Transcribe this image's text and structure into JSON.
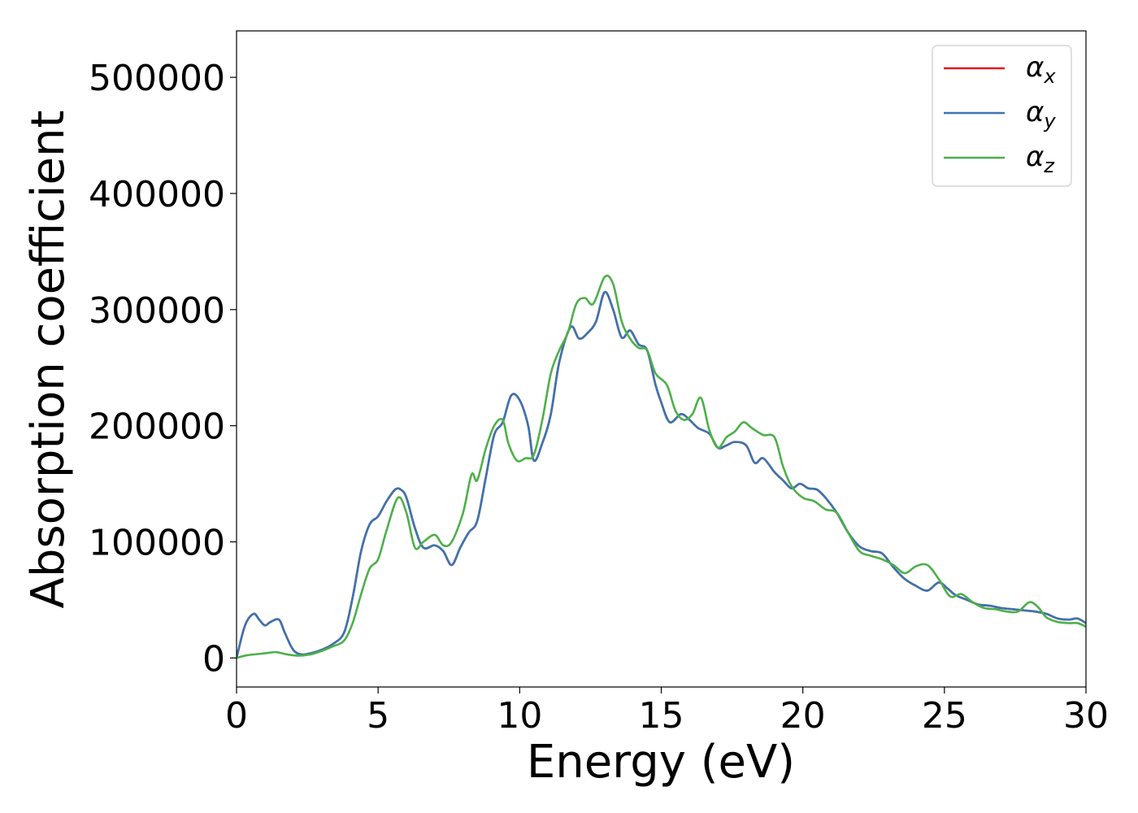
{
  "chart_data": {
    "type": "line",
    "xlabel": "Energy (eV)",
    "ylabel": "Absorption coefficient",
    "xlim": [
      0,
      30
    ],
    "ylim": [
      -25000,
      540000
    ],
    "x_ticks": [
      0,
      5,
      10,
      15,
      20,
      25,
      30
    ],
    "y_ticks": [
      0,
      100000,
      200000,
      300000,
      400000,
      500000
    ],
    "x_tick_labels": [
      "0",
      "5",
      "10",
      "15",
      "20",
      "25",
      "30"
    ],
    "y_tick_labels": [
      "0",
      "100000",
      "200000",
      "300000",
      "400000",
      "500000"
    ],
    "grid": false,
    "legend_position": "top-right",
    "series": [
      {
        "name": "α",
        "subscript": "x",
        "color": "#e41a1c",
        "x": [
          0,
          0.3,
          0.6,
          0.8,
          1.0,
          1.2,
          1.5,
          1.7,
          2.0,
          2.3,
          2.6,
          3.0,
          3.4,
          3.8,
          4.1,
          4.4,
          4.7,
          5.0,
          5.3,
          5.6,
          5.8,
          6.0,
          6.3,
          6.6,
          7.0,
          7.3,
          7.6,
          7.9,
          8.2,
          8.5,
          8.8,
          9.1,
          9.4,
          9.7,
          10.0,
          10.3,
          10.5,
          10.8,
          11.1,
          11.4,
          11.8,
          12.1,
          12.4,
          12.7,
          13.0,
          13.3,
          13.6,
          13.9,
          14.2,
          14.5,
          14.8,
          15.0,
          15.3,
          15.7,
          16.0,
          16.3,
          16.7,
          17.0,
          17.3,
          17.6,
          18.0,
          18.3,
          18.6,
          19.0,
          19.3,
          19.6,
          19.9,
          20.2,
          20.5,
          20.8,
          21.2,
          21.6,
          22.0,
          22.4,
          22.8,
          23.2,
          23.6,
          24.0,
          24.4,
          24.8,
          25.1,
          25.4,
          25.8,
          26.2,
          26.6,
          27.0,
          27.4,
          27.8,
          28.2,
          28.6,
          29.0,
          29.4,
          29.7,
          30.0
        ],
        "values": [
          0,
          28000,
          38000,
          33000,
          28000,
          31000,
          33000,
          22000,
          7000,
          3000,
          4000,
          7000,
          12000,
          22000,
          52000,
          92000,
          115000,
          122000,
          135000,
          145000,
          145000,
          138000,
          112000,
          95000,
          97000,
          92000,
          80000,
          95000,
          108000,
          118000,
          155000,
          192000,
          203000,
          226000,
          222000,
          200000,
          170000,
          185000,
          210000,
          255000,
          285000,
          275000,
          280000,
          290000,
          315000,
          300000,
          276000,
          282000,
          270000,
          265000,
          235000,
          220000,
          203000,
          210000,
          205000,
          198000,
          193000,
          181000,
          183000,
          186000,
          183000,
          168000,
          172000,
          160000,
          153000,
          146000,
          150000,
          146000,
          145000,
          138000,
          125000,
          108000,
          96000,
          92000,
          90000,
          78000,
          68000,
          62000,
          58000,
          65000,
          60000,
          54000,
          50000,
          46000,
          45000,
          43000,
          42000,
          41000,
          40000,
          38000,
          34000,
          33000,
          34000,
          30000
        ]
      },
      {
        "name": "α",
        "subscript": "y",
        "color": "#3a74b0",
        "x": [
          0,
          0.3,
          0.6,
          0.8,
          1.0,
          1.2,
          1.5,
          1.7,
          2.0,
          2.3,
          2.6,
          3.0,
          3.4,
          3.8,
          4.1,
          4.4,
          4.7,
          5.0,
          5.3,
          5.6,
          5.8,
          6.0,
          6.3,
          6.6,
          7.0,
          7.3,
          7.6,
          7.9,
          8.2,
          8.5,
          8.8,
          9.1,
          9.4,
          9.7,
          10.0,
          10.3,
          10.5,
          10.8,
          11.1,
          11.4,
          11.8,
          12.1,
          12.4,
          12.7,
          13.0,
          13.3,
          13.6,
          13.9,
          14.2,
          14.5,
          14.8,
          15.0,
          15.3,
          15.7,
          16.0,
          16.3,
          16.7,
          17.0,
          17.3,
          17.6,
          18.0,
          18.3,
          18.6,
          19.0,
          19.3,
          19.6,
          19.9,
          20.2,
          20.5,
          20.8,
          21.2,
          21.6,
          22.0,
          22.4,
          22.8,
          23.2,
          23.6,
          24.0,
          24.4,
          24.8,
          25.1,
          25.4,
          25.8,
          26.2,
          26.6,
          27.0,
          27.4,
          27.8,
          28.2,
          28.6,
          29.0,
          29.4,
          29.7,
          30.0
        ],
        "values": [
          0,
          28000,
          38000,
          33000,
          28000,
          31000,
          33000,
          22000,
          7000,
          3000,
          4000,
          7000,
          12000,
          22000,
          52000,
          92000,
          115000,
          122000,
          135000,
          145000,
          145000,
          138000,
          112000,
          95000,
          97000,
          92000,
          80000,
          95000,
          108000,
          118000,
          155000,
          192000,
          203000,
          226000,
          222000,
          200000,
          170000,
          185000,
          210000,
          255000,
          285000,
          275000,
          280000,
          290000,
          315000,
          300000,
          276000,
          282000,
          270000,
          265000,
          235000,
          220000,
          203000,
          210000,
          205000,
          198000,
          193000,
          181000,
          183000,
          186000,
          183000,
          168000,
          172000,
          160000,
          153000,
          146000,
          150000,
          146000,
          145000,
          138000,
          125000,
          108000,
          96000,
          92000,
          90000,
          78000,
          68000,
          62000,
          58000,
          65000,
          60000,
          54000,
          50000,
          46000,
          45000,
          43000,
          42000,
          41000,
          40000,
          38000,
          34000,
          33000,
          34000,
          30000
        ]
      },
      {
        "name": "α",
        "subscript": "z",
        "color": "#4daf4a",
        "x": [
          0,
          0.3,
          0.6,
          1.0,
          1.4,
          1.8,
          2.2,
          2.6,
          3.0,
          3.4,
          3.8,
          4.1,
          4.4,
          4.7,
          5.0,
          5.3,
          5.7,
          6.0,
          6.3,
          6.6,
          7.0,
          7.3,
          7.6,
          8.0,
          8.3,
          8.5,
          8.8,
          9.1,
          9.4,
          9.6,
          9.9,
          10.2,
          10.5,
          10.8,
          11.1,
          11.4,
          11.7,
          12.0,
          12.3,
          12.6,
          13.0,
          13.3,
          13.6,
          13.9,
          14.2,
          14.5,
          14.8,
          15.2,
          15.5,
          15.8,
          16.1,
          16.4,
          16.7,
          17.0,
          17.3,
          17.6,
          17.9,
          18.2,
          18.6,
          19.0,
          19.3,
          19.6,
          20.0,
          20.4,
          20.8,
          21.2,
          21.6,
          22.0,
          22.4,
          22.8,
          23.2,
          23.6,
          24.0,
          24.4,
          24.8,
          25.2,
          25.6,
          26.0,
          26.4,
          26.8,
          27.2,
          27.6,
          28.0,
          28.3,
          28.6,
          29.0,
          29.4,
          29.7,
          30.0
        ],
        "values": [
          0,
          2000,
          3000,
          4000,
          5000,
          3000,
          2000,
          3000,
          6000,
          10000,
          15000,
          30000,
          55000,
          77000,
          85000,
          110000,
          138000,
          125000,
          95000,
          100000,
          106000,
          97000,
          100000,
          125000,
          158000,
          153000,
          180000,
          200000,
          205000,
          185000,
          170000,
          172000,
          175000,
          205000,
          245000,
          265000,
          280000,
          305000,
          310000,
          305000,
          328000,
          322000,
          290000,
          275000,
          267000,
          265000,
          245000,
          235000,
          213000,
          205000,
          210000,
          224000,
          196000,
          181000,
          190000,
          195000,
          203000,
          198000,
          192000,
          190000,
          165000,
          148000,
          138000,
          135000,
          128000,
          125000,
          108000,
          92000,
          88000,
          85000,
          80000,
          73000,
          79000,
          80000,
          68000,
          53000,
          55000,
          48000,
          43000,
          42000,
          40000,
          40000,
          48000,
          44000,
          35000,
          31000,
          30000,
          30000,
          27000
        ]
      }
    ]
  }
}
